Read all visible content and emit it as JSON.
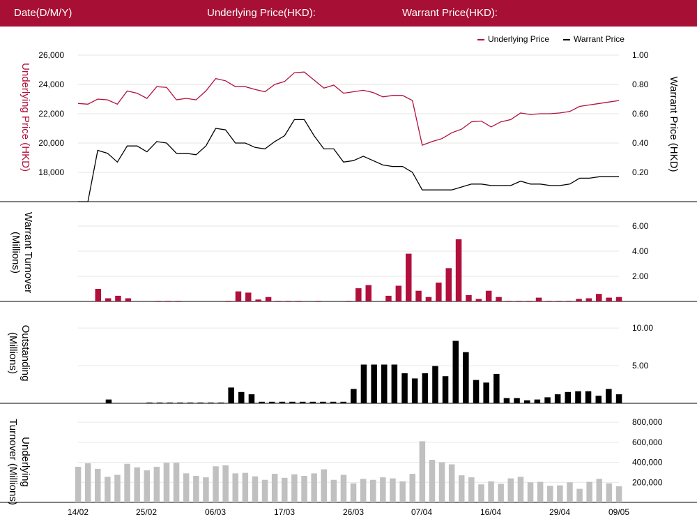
{
  "header": {
    "date_label": "Date(D/M/Y)",
    "underlying_label": "Underlying Price(HKD):",
    "warrant_label": "Warrant Price(HKD):"
  },
  "colors": {
    "brand": "#a70f34",
    "underlying": "#b1103c",
    "warrant": "#000000",
    "underlying_turnover": "#c0c0c0",
    "grid": "#e6e6e6"
  },
  "chart_data": [
    {
      "type": "line",
      "title": "",
      "legend": [
        "Underlying Price",
        "Warrant Price"
      ],
      "legend_position": "top-right",
      "ylabel_left": "Underlying Price (HKD)",
      "ylabel_right": "Warrant  Price (HKD)",
      "yticks_left": [
        "18,000",
        "20,000",
        "22,000",
        "24,000",
        "26,000"
      ],
      "yticks_right": [
        "0.20",
        "0.40",
        "0.60",
        "0.80",
        "1.00"
      ],
      "ylim_left": [
        16000,
        26000
      ],
      "ylim_right": [
        0,
        1.0
      ],
      "series": [
        {
          "name": "Underlying Price",
          "axis": "left",
          "values": [
            22700,
            22650,
            23000,
            22950,
            22650,
            23550,
            23400,
            23050,
            23850,
            23800,
            22950,
            23050,
            22950,
            23550,
            24400,
            24250,
            23850,
            23850,
            23650,
            23500,
            24000,
            24200,
            24800,
            24850,
            24300,
            23750,
            23950,
            23400,
            23500,
            23600,
            23450,
            23150,
            23250,
            23250,
            22900,
            19850,
            20100,
            20300,
            20700,
            20950,
            21450,
            21500,
            21100,
            21450,
            21600,
            22050,
            21950,
            22000,
            22000,
            22050,
            22150,
            22500,
            22600,
            22700,
            22800,
            22900
          ]
        },
        {
          "name": "Warrant Price",
          "axis": "right",
          "values": [
            0.0,
            0.0,
            0.35,
            0.33,
            0.27,
            0.38,
            0.38,
            0.34,
            0.41,
            0.4,
            0.33,
            0.33,
            0.32,
            0.38,
            0.5,
            0.49,
            0.4,
            0.4,
            0.37,
            0.36,
            0.41,
            0.45,
            0.56,
            0.56,
            0.45,
            0.36,
            0.36,
            0.27,
            0.28,
            0.31,
            0.28,
            0.25,
            0.24,
            0.24,
            0.2,
            0.08,
            0.08,
            0.08,
            0.08,
            0.1,
            0.12,
            0.12,
            0.11,
            0.11,
            0.11,
            0.14,
            0.12,
            0.12,
            0.11,
            0.11,
            0.12,
            0.16,
            0.16,
            0.17,
            0.17,
            0.17
          ]
        }
      ]
    },
    {
      "type": "bar",
      "ylabel": "Warrant  Turnover (Millions)",
      "yticks": [
        "2.00",
        "4.00",
        "6.00"
      ],
      "ylim": [
        0,
        7
      ],
      "values": [
        0,
        0,
        1.0,
        0.25,
        0.45,
        0.25,
        0,
        0,
        0.05,
        0.05,
        0.05,
        0,
        0,
        0,
        0,
        0.05,
        0.8,
        0.7,
        0.15,
        0.35,
        0.05,
        0.05,
        0.05,
        0,
        0.05,
        0,
        0,
        0.05,
        1.05,
        1.3,
        0,
        0.45,
        1.25,
        3.8,
        0.85,
        0.35,
        1.5,
        2.65,
        4.95,
        0.5,
        0.2,
        0.85,
        0.35,
        0.05,
        0.05,
        0.05,
        0.3,
        0.05,
        0.05,
        0.05,
        0.2,
        0.25,
        0.6,
        0.3,
        0.35
      ]
    },
    {
      "type": "bar",
      "ylabel": "Outstanding (Millions)",
      "yticks": [
        "5.00",
        "10.00"
      ],
      "ylim": [
        0,
        11.5
      ],
      "values": [
        0,
        0,
        0,
        0.5,
        0,
        0,
        0,
        0.1,
        0.1,
        0.1,
        0.1,
        0.1,
        0.1,
        0.1,
        0.1,
        2.1,
        1.5,
        1.2,
        0.2,
        0.2,
        0.2,
        0.2,
        0.2,
        0.2,
        0.2,
        0.2,
        0.2,
        1.9,
        5.15,
        5.15,
        5.15,
        5.15,
        4.0,
        3.3,
        4.0,
        4.95,
        3.6,
        8.3,
        6.8,
        3.1,
        2.75,
        3.9,
        0.7,
        0.7,
        0.4,
        0.5,
        0.8,
        1.2,
        1.5,
        1.6,
        1.6,
        1.0,
        1.9,
        1.2
      ]
    },
    {
      "type": "bar",
      "ylabel": "Underlying Turnover (Millions)",
      "yticks": [
        "200,000",
        "400,000",
        "600,000",
        "800,000"
      ],
      "ylim": [
        0,
        850000
      ],
      "values": [
        355000,
        390000,
        335000,
        255000,
        275000,
        385000,
        350000,
        320000,
        355000,
        395000,
        395000,
        290000,
        265000,
        250000,
        360000,
        370000,
        290000,
        295000,
        260000,
        225000,
        285000,
        245000,
        280000,
        265000,
        290000,
        330000,
        225000,
        275000,
        190000,
        235000,
        225000,
        250000,
        240000,
        210000,
        285000,
        610000,
        425000,
        400000,
        380000,
        270000,
        250000,
        180000,
        210000,
        185000,
        240000,
        255000,
        200000,
        205000,
        165000,
        170000,
        200000,
        135000,
        205000,
        235000,
        190000,
        160000
      ]
    }
  ],
  "xaxis": {
    "ticks": [
      "14/02",
      "25/02",
      "06/03",
      "17/03",
      "26/03",
      "07/04",
      "16/04",
      "29/04",
      "09/05"
    ]
  }
}
